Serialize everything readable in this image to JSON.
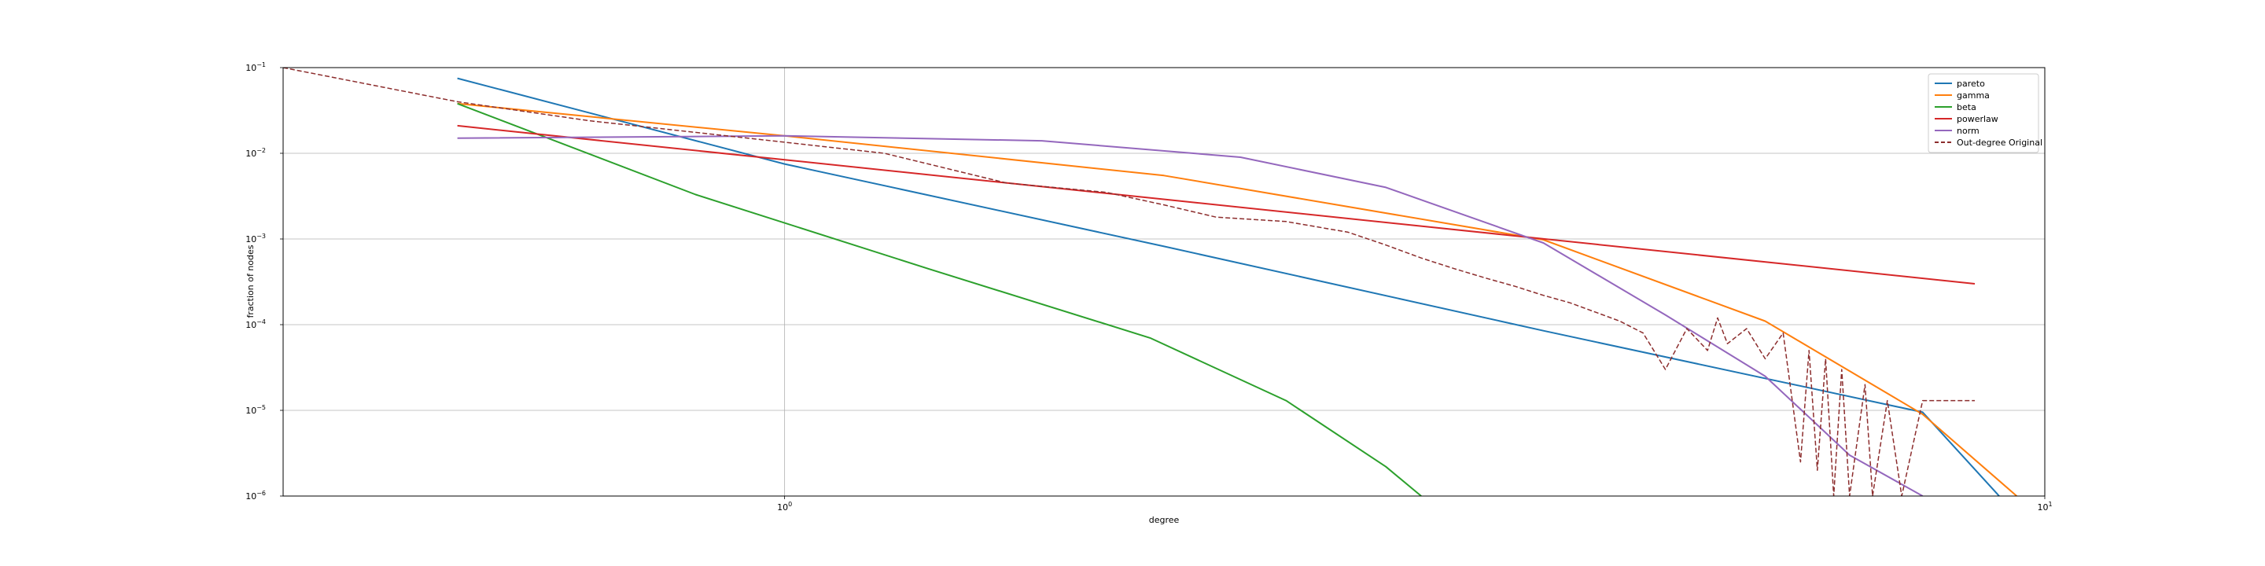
{
  "chart_data": {
    "type": "line",
    "xlabel": "degree",
    "ylabel": "fraction of nodes",
    "xscale": "log",
    "yscale": "log",
    "xlim": [
      0.4,
      10
    ],
    "ylim": [
      1e-06,
      0.1
    ],
    "grid": true,
    "legend_position": "top-right",
    "x_tick_labels": [
      {
        "value": 1,
        "base": "10",
        "exp": "0"
      },
      {
        "value": 10,
        "base": "10",
        "exp": "1"
      }
    ],
    "y_tick_labels": [
      {
        "value": 0.1,
        "base": "10",
        "exp": "−1"
      },
      {
        "value": 0.01,
        "base": "10",
        "exp": "−2"
      },
      {
        "value": 0.001,
        "base": "10",
        "exp": "−3"
      },
      {
        "value": 0.0001,
        "base": "10",
        "exp": "−4"
      },
      {
        "value": 1e-05,
        "base": "10",
        "exp": "−5"
      },
      {
        "value": 1e-06,
        "base": "10",
        "exp": "−6"
      }
    ],
    "series": [
      {
        "name": "pareto",
        "color": "#1f77b4",
        "style": "solid",
        "x": [
          0.55,
          1,
          2,
          4,
          8,
          9.2
        ],
        "y": [
          0.075,
          0.0075,
          0.00082,
          8.5e-05,
          9.5e-06,
          1e-06
        ]
      },
      {
        "name": "gamma",
        "color": "#ff7f0e",
        "style": "solid",
        "x": [
          0.55,
          1,
          2,
          4,
          6,
          8,
          9.5
        ],
        "y": [
          0.038,
          0.016,
          0.0055,
          0.00098,
          0.00011,
          9e-06,
          1e-06
        ]
      },
      {
        "name": "beta",
        "color": "#2ca02c",
        "style": "solid",
        "x": [
          0.55,
          0.85,
          1.3,
          1.95,
          2.5,
          3.0,
          3.2
        ],
        "y": [
          0.038,
          0.0033,
          0.00045,
          7e-05,
          1.3e-05,
          2.2e-06,
          1e-06
        ]
      },
      {
        "name": "powerlaw",
        "color": "#d62728",
        "style": "solid",
        "x": [
          0.55,
          8.8
        ],
        "y": [
          0.021,
          0.0003
        ]
      },
      {
        "name": "norm",
        "color": "#9467bd",
        "style": "solid",
        "x": [
          0.55,
          1.0,
          1.6,
          2.3,
          3.0,
          4.0,
          5.0,
          6.0,
          7.0,
          8.0
        ],
        "y": [
          0.015,
          0.016,
          0.014,
          0.009,
          0.004,
          0.0009,
          0.00013,
          2.5e-05,
          3e-06,
          1e-06
        ]
      },
      {
        "name": "Out-degree Original",
        "color": "#8c2d2d",
        "style": "dashed",
        "x": [
          0.4,
          0.55,
          0.7,
          0.9,
          1.2,
          1.5,
          1.8,
          2.0,
          2.2,
          2.5,
          2.8,
          3.0,
          3.2,
          3.4,
          3.6,
          3.8,
          4.0,
          4.2,
          4.4,
          4.6,
          4.8,
          5.0,
          5.2,
          5.4,
          5.5,
          5.6,
          5.8,
          6.0,
          6.2,
          6.4,
          6.5,
          6.6,
          6.7,
          6.8,
          6.9,
          7.0,
          7.2,
          7.3,
          7.5,
          7.7,
          8.0,
          8.8
        ],
        "y": [
          0.1,
          0.04,
          0.024,
          0.016,
          0.01,
          0.0045,
          0.0035,
          0.0025,
          0.0018,
          0.0016,
          0.0012,
          0.00085,
          0.0006,
          0.00045,
          0.00035,
          0.00028,
          0.00022,
          0.00018,
          0.00014,
          0.00011,
          8e-05,
          3e-05,
          9e-05,
          5e-05,
          0.00012,
          6e-05,
          9e-05,
          4e-05,
          8e-05,
          2.5e-06,
          5e-05,
          2e-06,
          4e-05,
          1e-06,
          3e-05,
          1e-06,
          2e-05,
          1e-06,
          1.3e-05,
          1e-06,
          1.3e-05,
          1.3e-05
        ]
      }
    ]
  }
}
